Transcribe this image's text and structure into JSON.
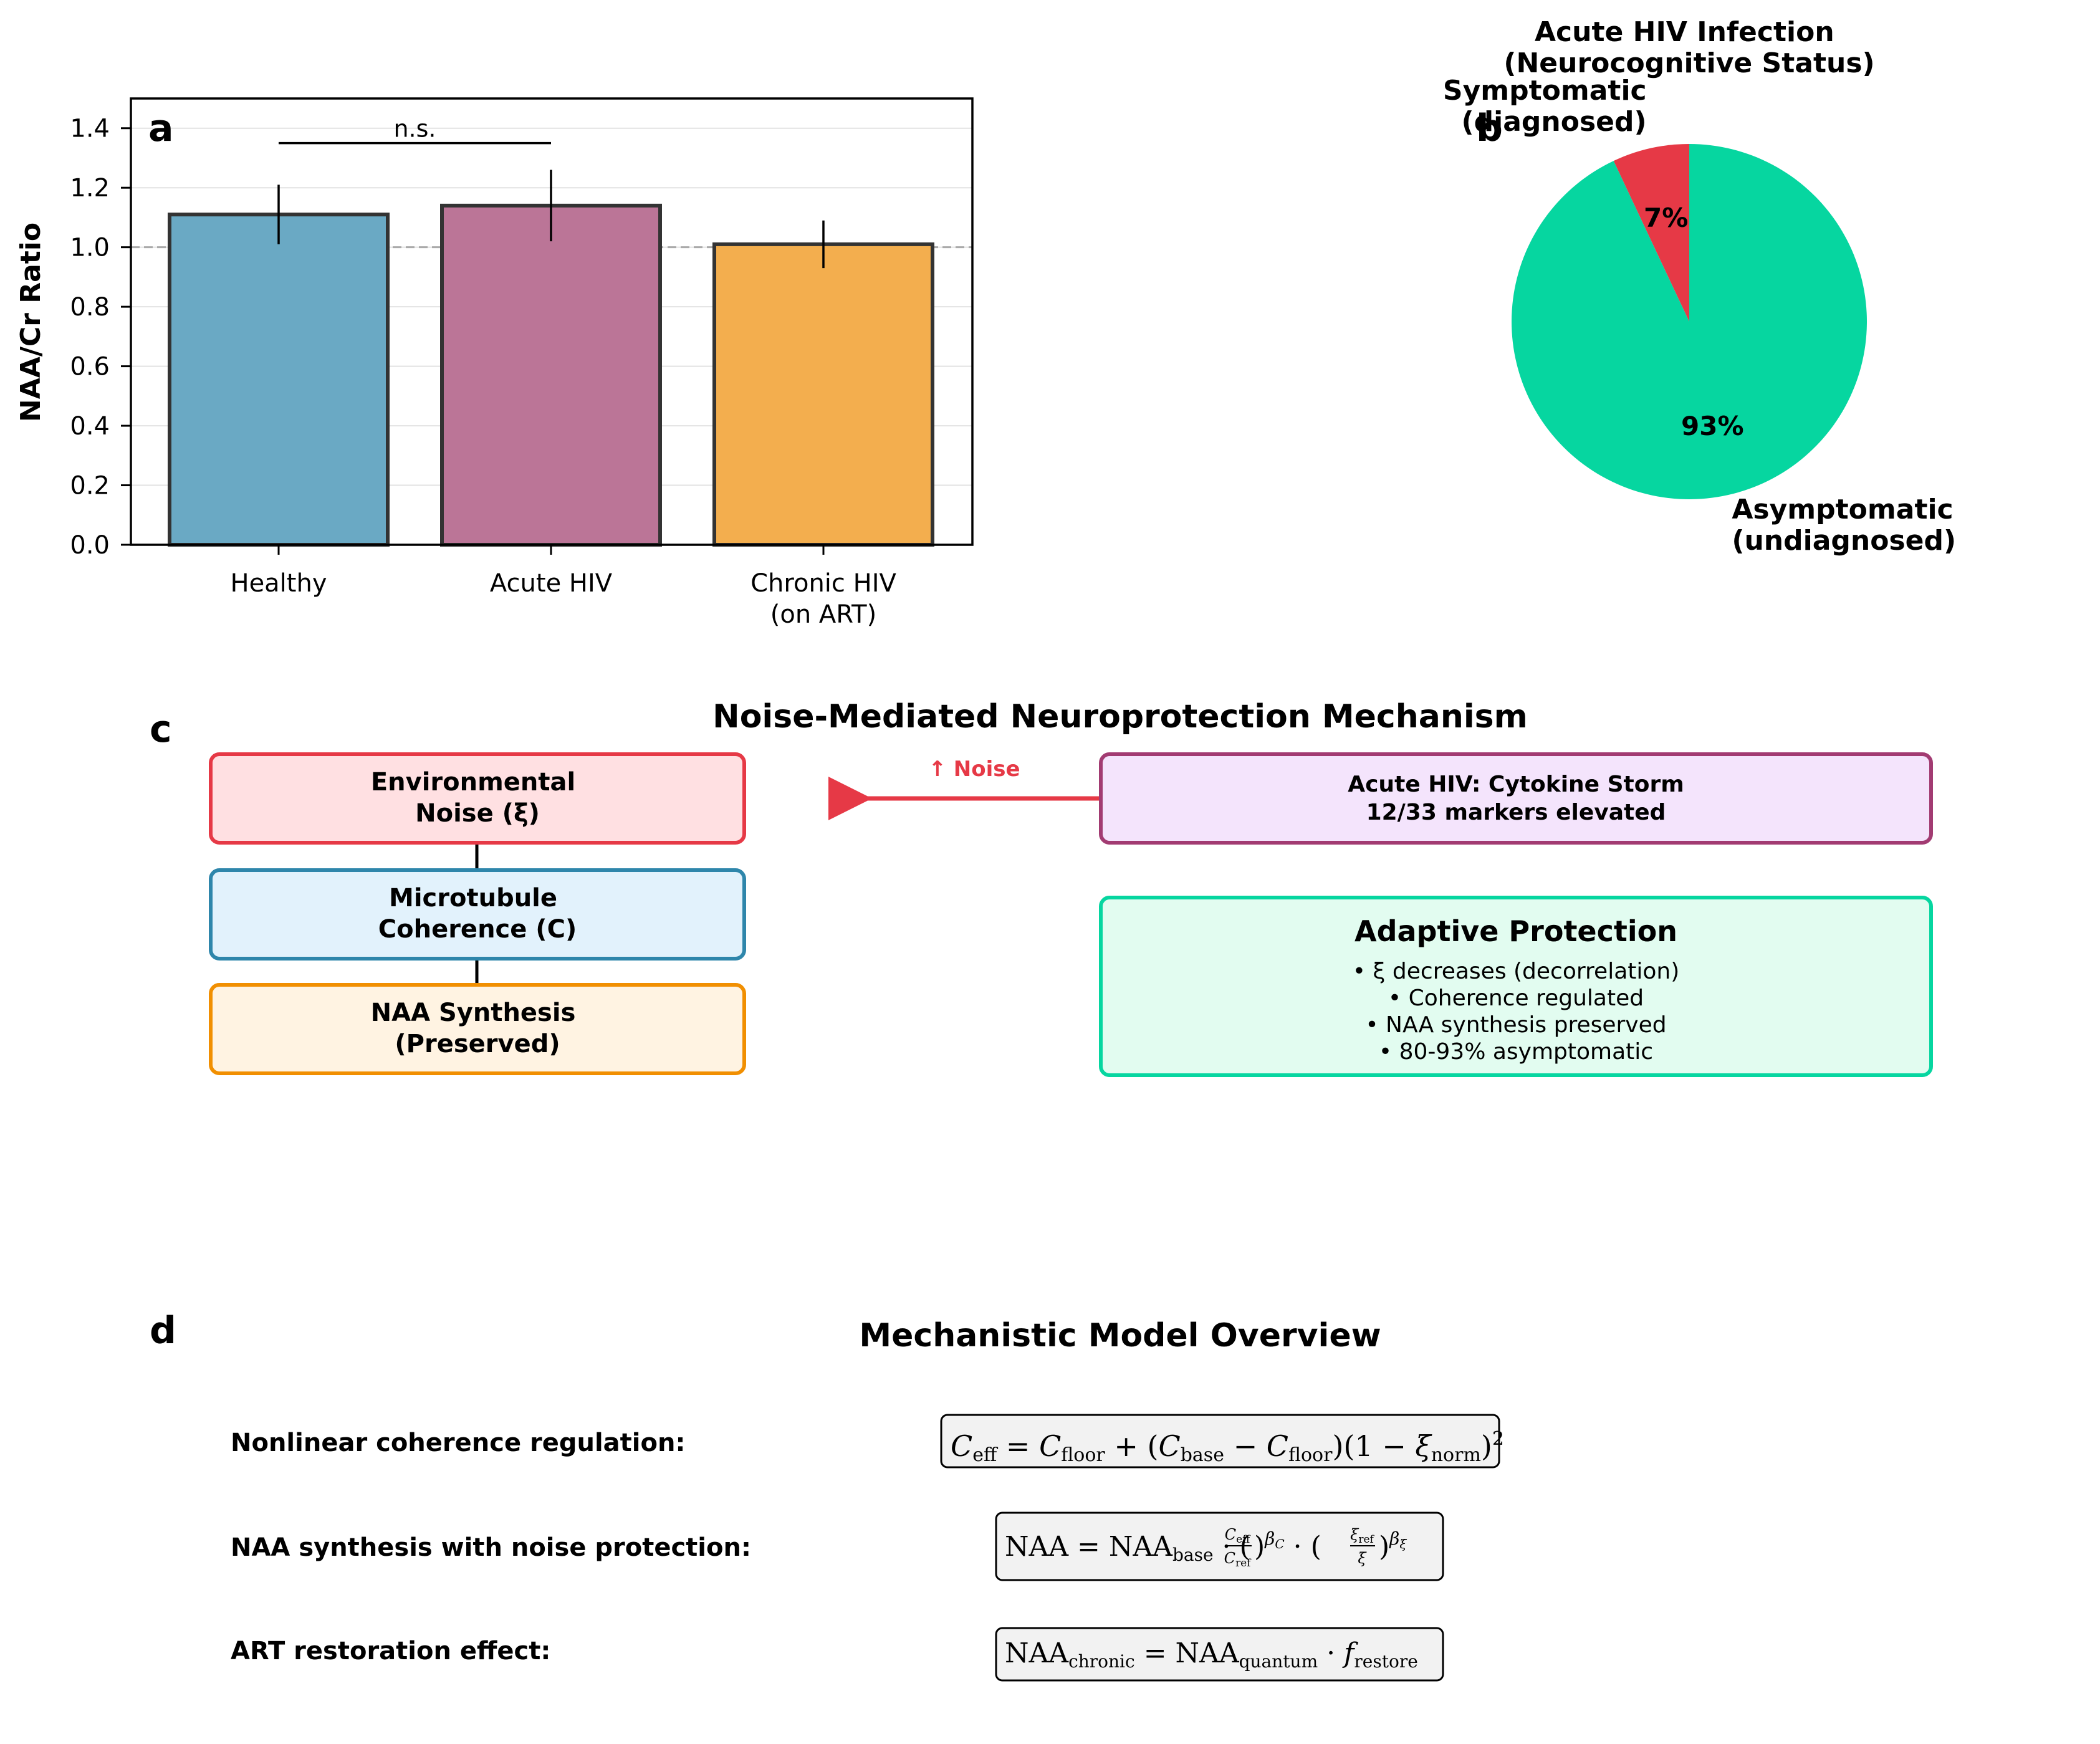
{
  "panels": {
    "a": "a",
    "b": "b",
    "c": "c",
    "d": "d"
  },
  "chart_data": [
    {
      "type": "bar",
      "categories": [
        "Healthy",
        "Acute HIV",
        "Chronic HIV\n(on ART)"
      ],
      "values": [
        1.11,
        1.14,
        1.01
      ],
      "errors": [
        0.1,
        0.12,
        0.08
      ],
      "colors": [
        "#6aa9c4",
        "#bb7597",
        "#f3ae4e"
      ],
      "title": "",
      "xlabel": "",
      "ylabel": "NAA/Cr Ratio",
      "ylim": [
        0,
        1.5
      ],
      "yticks": [
        "0.0",
        "0.2",
        "0.4",
        "0.6",
        "0.8",
        "1.0",
        "1.2",
        "1.4"
      ],
      "reference_line": 1.0,
      "grid": "y",
      "significance": {
        "label": "n.s.",
        "from": 0,
        "to": 1,
        "y": 1.35
      }
    },
    {
      "type": "pie",
      "title": "Acute HIV Infection\n(Neurocognitive Status)",
      "slices": [
        {
          "label": "Symptomatic\n(diagnosed)",
          "value": 7,
          "pct_label": "7%",
          "color": "#e63946"
        },
        {
          "label": "Asymptomatic\n(undiagnosed)",
          "value": 93,
          "pct_label": "93%",
          "color": "#06d6a0"
        }
      ]
    }
  ],
  "mechanism": {
    "title": "Noise-Mediated Neuroprotection Mechanism",
    "box_noise": "Environmental\nNoise (ξ)",
    "box_coherence": "Microtubule\nCoherence (C)",
    "box_naa": "NAA Synthesis\n(Preserved)",
    "arrow_label": "↑ Noise",
    "box_storm_line1": "Acute HIV: Cytokine Storm",
    "box_storm_line2": "12/33 markers elevated",
    "protection_title": "Adaptive Protection",
    "protection_items": [
      "• ξ decreases (decorrelation)",
      "• Coherence regulated",
      "• NAA synthesis preserved",
      "• 80-93% asymptomatic"
    ],
    "colors": {
      "noise": "#e63946",
      "coherence": "#2e86ab",
      "naa": "#f18f01",
      "storm": "#a23b72",
      "protection": "#06d6a0"
    }
  },
  "model": {
    "title": "Mechanistic Model Overview",
    "rows": [
      {
        "label": "Nonlinear coherence regulation:"
      },
      {
        "label": "NAA synthesis with noise protection:"
      },
      {
        "label": "ART restoration effect:"
      }
    ]
  }
}
